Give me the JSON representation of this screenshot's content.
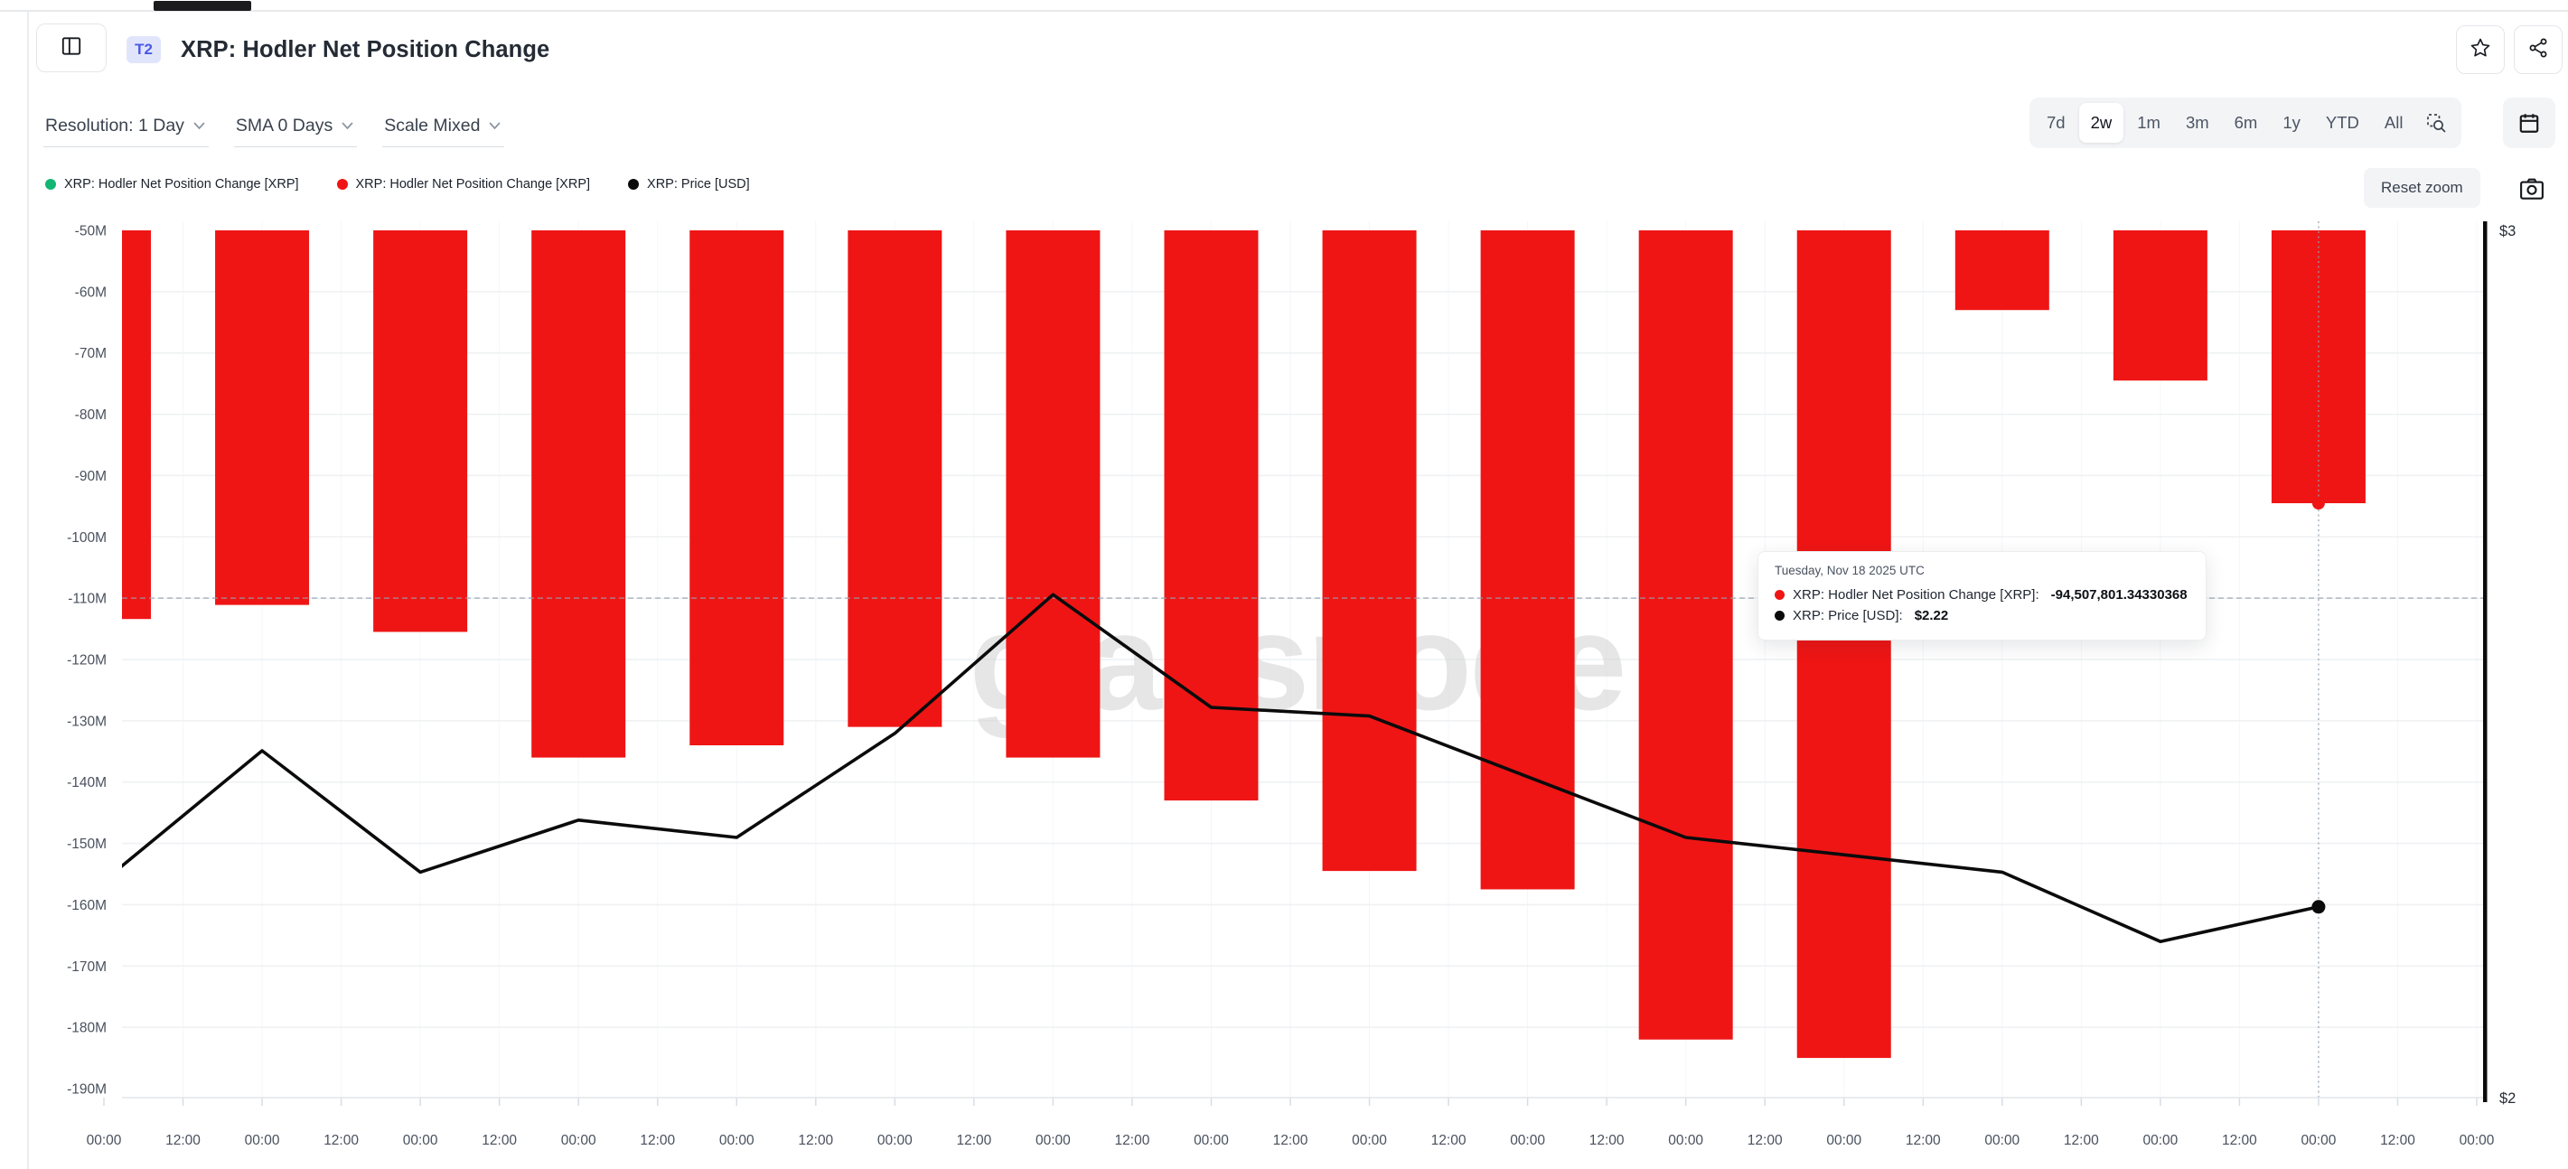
{
  "window": {
    "tab_indicator": "active-tab"
  },
  "header": {
    "badge": "T2",
    "title": "XRP: Hodler Net Position Change"
  },
  "toolbar": {
    "dropdowns": [
      {
        "label": "Resolution: 1 Day"
      },
      {
        "label": "SMA 0 Days"
      },
      {
        "label": "Scale Mixed"
      }
    ],
    "ranges": [
      "7d",
      "2w",
      "1m",
      "3m",
      "6m",
      "1y",
      "YTD",
      "All"
    ],
    "active_range": "2w",
    "reset_zoom_label": "Reset zoom"
  },
  "legend": {
    "items": [
      {
        "label": "XRP: Hodler Net Position Change [XRP]",
        "color": "#14b572"
      },
      {
        "label": "XRP: Hodler Net Position Change [XRP]",
        "color": "#ef1515"
      },
      {
        "label": "XRP: Price [USD]",
        "color": "#0b0b0c"
      }
    ]
  },
  "tooltip": {
    "date": "Tuesday, Nov 18 2025 UTC",
    "rows": [
      {
        "color": "#ef1515",
        "label": "XRP: Hodler Net Position Change [XRP]:",
        "value": "-94,507,801.34330368"
      },
      {
        "color": "#0b0b0c",
        "label": "XRP: Price [USD]:",
        "value": "$2.22"
      }
    ]
  },
  "chart_data": {
    "type": "bar+line",
    "title": "XRP: Hodler Net Position Change",
    "watermark": "glassnode",
    "x_tick_labels": [
      "00:00",
      "12:00",
      "00:00",
      "12:00",
      "00:00",
      "12:00",
      "00:00",
      "12:00",
      "00:00",
      "12:00",
      "00:00",
      "12:00",
      "00:00",
      "12:00",
      "00:00",
      "12:00",
      "00:00",
      "12:00",
      "00:00",
      "12:00",
      "00:00",
      "12:00",
      "00:00",
      "12:00",
      "00:00",
      "12:00",
      "00:00",
      "12:00",
      "00:00",
      "12:00",
      "00:00"
    ],
    "bar_alignment": "bars and line points fall on every second tick (each 00:00), 15 daily points, last = Nov 18 2025",
    "series": [
      {
        "name": "XRP: Hodler Net Position Change [XRP]",
        "type": "bar",
        "unit": "XRP millions",
        "values_millions": [
          -113.4,
          -111.1,
          -115.5,
          -136,
          -134,
          -131,
          -136,
          -143,
          -154.5,
          -157.5,
          -182,
          -185,
          -63,
          -74.5,
          -94.507801
        ]
      },
      {
        "name": "XRP: Price [USD]",
        "type": "line",
        "unit": "USD",
        "values": [
          2.25,
          2.4,
          2.26,
          2.32,
          2.3,
          2.42,
          2.58,
          2.45,
          2.44,
          2.37,
          2.3,
          2.28,
          2.26,
          2.18,
          2.22
        ]
      }
    ],
    "y_left": {
      "ticks": [
        "-50M",
        "-60M",
        "-70M",
        "-80M",
        "-90M",
        "-100M",
        "-110M",
        "-120M",
        "-130M",
        "-140M",
        "-150M",
        "-160M",
        "-170M",
        "-180M",
        "-190M"
      ],
      "max": -50,
      "min": -190,
      "grid": true
    },
    "y_right": {
      "ticks": [
        "$3",
        "$2"
      ],
      "max": 3,
      "min": 2
    },
    "hover": {
      "day_index": 14,
      "bar_value_exact": -94507801.34330368,
      "price": 2.22,
      "crosshair_hline_price": 2.576
    },
    "colors": {
      "bar": "#ef1515",
      "line": "#0b0b0c",
      "grid": "#eef0f3",
      "vgrid": "#f5f6f8",
      "crosshair": "#94a1b0",
      "axis_text": "#49515e",
      "right_axis": "#0b0b0c",
      "watermark": "#d7d7d7"
    },
    "legend_position": "top-left",
    "xlabel": "",
    "ylabel": ""
  }
}
